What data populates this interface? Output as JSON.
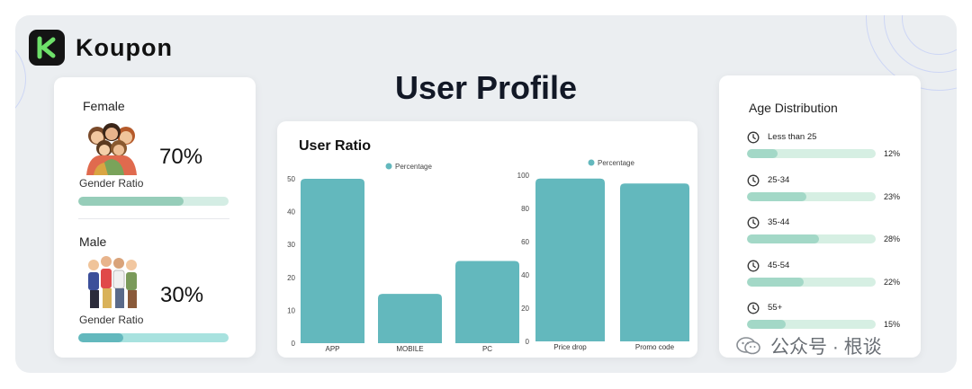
{
  "brand": {
    "name": "Koupon",
    "mark": "K"
  },
  "page_title": "User Profile",
  "gender": {
    "female": {
      "label": "Female",
      "percent_text": "70%",
      "ratio_label": "Gender Ratio",
      "ratio": 0.7,
      "icon": "female-group-icon"
    },
    "male": {
      "label": "Male",
      "percent_text": "30%",
      "ratio_label": "Gender Ratio",
      "ratio": 0.3,
      "icon": "male-group-icon"
    }
  },
  "user_ratio_title": "User Ratio",
  "age_title": "Age Distribution",
  "colors": {
    "bar": "#63b8bd",
    "age_track": "#d6efe3",
    "age_fill": "#a3d8c7",
    "female_fill": "#96cdb9",
    "male_fill": "#63b8bd",
    "male_track": "#a8e2df"
  },
  "chart_data": [
    {
      "type": "bar",
      "legend": [
        "Percentage"
      ],
      "categories": [
        "APP",
        "MOBILE",
        "PC"
      ],
      "series": [
        {
          "name": "Percentage",
          "values": [
            50,
            15,
            25
          ]
        }
      ],
      "ylim": [
        0,
        50
      ],
      "yticks": [
        0,
        10,
        20,
        30,
        40,
        50
      ]
    },
    {
      "type": "bar",
      "legend": [
        "Percentage"
      ],
      "categories": [
        "Price drop",
        "Promo code"
      ],
      "series": [
        {
          "name": "Percentage",
          "values": [
            98,
            95
          ]
        }
      ],
      "ylim": [
        0,
        100
      ],
      "yticks": [
        0,
        20,
        40,
        60,
        80,
        100
      ]
    },
    {
      "type": "bar",
      "orientation": "horizontal",
      "title": "Age Distribution",
      "categories": [
        "Less than 25",
        "25-34",
        "35-44",
        "45-54",
        "55+"
      ],
      "values": [
        12,
        23,
        28,
        22,
        15
      ],
      "value_labels": [
        "12%",
        "23%",
        "28%",
        "22%",
        "15%"
      ]
    }
  ],
  "watermark": {
    "text": "公众号 · 根谈",
    "icon": "wechat-icon"
  }
}
